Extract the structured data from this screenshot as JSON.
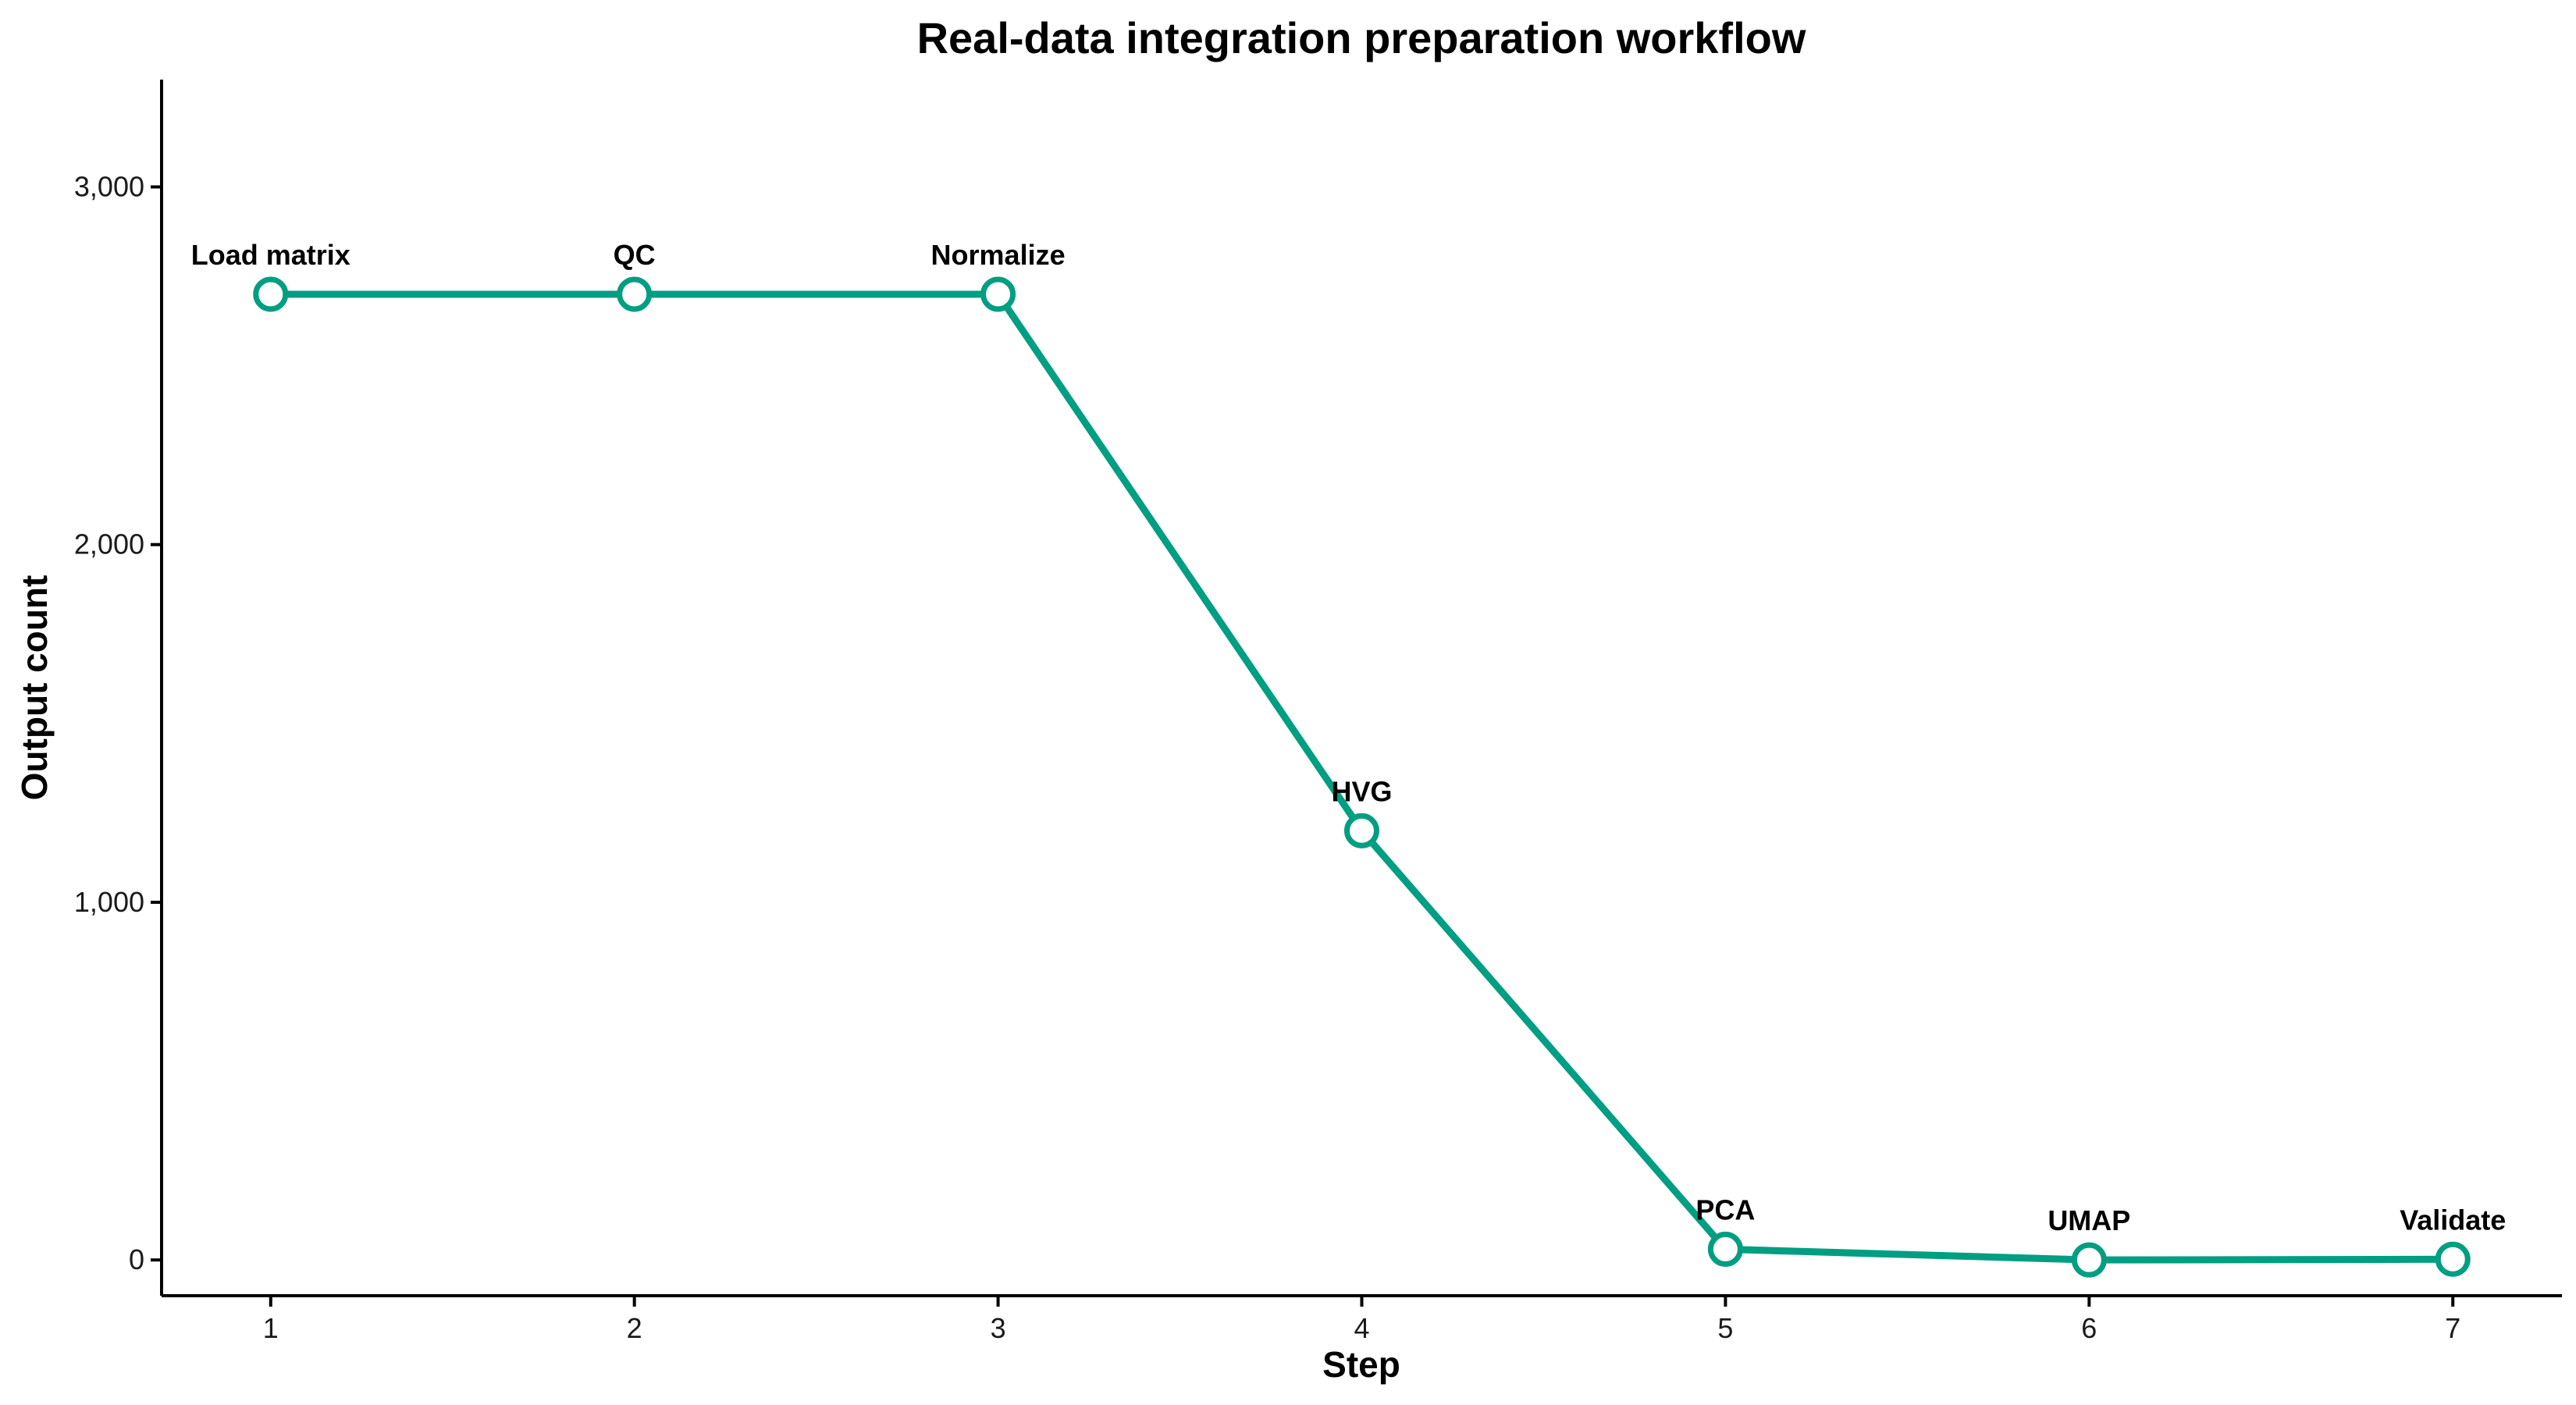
{
  "chart_data": {
    "type": "line",
    "title": "Real-data integration preparation workflow",
    "xlabel": "Step",
    "ylabel": "Output count",
    "x": [
      1,
      2,
      3,
      4,
      5,
      6,
      7
    ],
    "x_ticks": [
      "1",
      "2",
      "3",
      "4",
      "5",
      "6",
      "7"
    ],
    "y_ticks": [
      0,
      1000,
      2000,
      3000
    ],
    "y_tick_labels": [
      "0",
      "1,000",
      "2,000",
      "3,000"
    ],
    "xlim": [
      0.7,
      7.3
    ],
    "ylim": [
      -100,
      3300
    ],
    "grid": false,
    "legend": "none",
    "series": [
      {
        "color": "#009E82",
        "values": [
          2700,
          2700,
          2700,
          1200,
          30,
          0,
          2
        ],
        "labels": [
          "Load matrix",
          "QC",
          "Normalize",
          "HVG",
          "PCA",
          "UMAP",
          "Validate"
        ]
      }
    ]
  }
}
